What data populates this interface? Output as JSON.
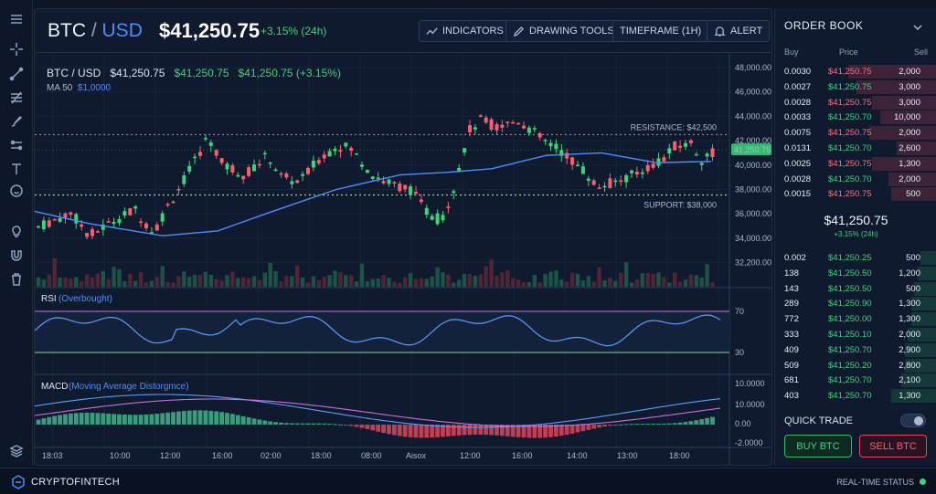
{
  "header": {
    "pair_base": "BTC",
    "pair_sep": " / ",
    "pair_quote": "USD",
    "price": "$41,250.75",
    "change": "+3.15% (24h)",
    "buttons": {
      "indicators": "INDICATORS",
      "drawing_tools": "DRAWING TOOLS",
      "timeframe": "TIMEFRAME (1H)",
      "alert": "ALERT"
    }
  },
  "legend": {
    "pair": "BTC / USD",
    "price": "$41,250.75",
    "value2": "$41,250.75",
    "value3": "$41,250.75 (+3.15%)",
    "ma_label": "MA 50",
    "ma_value": "$1,0000"
  },
  "main_chart": {
    "y_ticks": [
      "48,000.00",
      "46,000.00",
      "44,000.00",
      "42,000.00",
      "40,000.00",
      "38,000.00",
      "36,000.00",
      "34,000.00",
      "32,200.00"
    ],
    "current_price_tag": "41,250.75",
    "resistance_label": "RESISTANCE: $42,500",
    "support_label": "SUPPORT: $38,000"
  },
  "rsi": {
    "label": "RSI",
    "sublabel": "(Overbought)",
    "upper": "70",
    "lower": "30"
  },
  "macd": {
    "label": "MACD",
    "sublabel": "(Moving Average Distorgmce)",
    "ticks": [
      "10.0000",
      "10.0000",
      "0.00",
      "-2.0000"
    ]
  },
  "x_ticks": [
    "18:03",
    "10:00",
    "12:00",
    "16:00",
    "02:00",
    "18:00",
    "08:00",
    "Aisox",
    "12:00",
    "16:00",
    "14:00",
    "13:00",
    "18:00"
  ],
  "order_book": {
    "title": "ORDER BOOK",
    "col_buy": "Buy",
    "col_price": "Price",
    "col_sell": "Sell",
    "asks": [
      {
        "buy": "0.0030",
        "price": "$41,250.75",
        "sell": "2,000",
        "bar": 0.55
      },
      {
        "buy": "0.0027",
        "price": "$41,250.75",
        "sell": "3,000",
        "bar": 0.5
      },
      {
        "buy": "0.0028",
        "price": "$41,250.75",
        "sell": "3,000",
        "bar": 0.4
      },
      {
        "buy": "0.0033",
        "price": "$41,250.70",
        "sell": "10,000",
        "bar": 0.35
      },
      {
        "buy": "0.0075",
        "price": "$41,250.75",
        "sell": "2,000",
        "bar": 0.42
      },
      {
        "buy": "0.0131",
        "price": "$41,250.70",
        "sell": "2,600",
        "bar": 0.25
      },
      {
        "buy": "0.0025",
        "price": "$41,250.75",
        "sell": "1,300",
        "bar": 0.4
      },
      {
        "buy": "0.0028",
        "price": "$41,250.70",
        "sell": "2,000",
        "bar": 0.3
      },
      {
        "buy": "0.0015",
        "price": "$41,250.75",
        "sell": "500",
        "bar": 0.28
      }
    ],
    "mid_price": "$41,250.75",
    "mid_change": "+3.15% (24h)",
    "bids": [
      {
        "buy": "0.002",
        "price": "$41,250.25",
        "sell": "500",
        "bar": 0.1
      },
      {
        "buy": "138",
        "price": "$41,250.50",
        "sell": "1,200",
        "bar": 0.12
      },
      {
        "buy": "143",
        "price": "$41,250.50",
        "sell": "500",
        "bar": 0.14
      },
      {
        "buy": "289",
        "price": "$41,250.90",
        "sell": "1,300",
        "bar": 0.16
      },
      {
        "buy": "772",
        "price": "$41,250.00",
        "sell": "1,300",
        "bar": 0.16
      },
      {
        "buy": "333",
        "price": "$41,250.10",
        "sell": "2,000",
        "bar": 0.18
      },
      {
        "buy": "409",
        "price": "$41,250.70",
        "sell": "2,900",
        "bar": 0.2
      },
      {
        "buy": "509",
        "price": "$41,250.20",
        "sell": "2,800",
        "bar": 0.2
      },
      {
        "buy": "681",
        "price": "$41,250.70",
        "sell": "2,100",
        "bar": 0.22
      },
      {
        "buy": "403",
        "price": "$41,250.70",
        "sell": "1,300",
        "bar": 0.28
      }
    ]
  },
  "quick_trade": {
    "label": "QUICK TRADE",
    "buy": "BUY BTC",
    "sell": "SELL BTC"
  },
  "footer": {
    "brand": "CRYPTOFINTECH",
    "status": "REAL-TIME STATUS"
  },
  "colors": {
    "up": "#3fd47a",
    "down": "#ff5d6e",
    "ma": "#4e8dff",
    "resistance": "#ff5d6e",
    "support": "#9be14b"
  },
  "icons": [
    "menu-icon",
    "crosshair-icon",
    "trendline-icon",
    "fib-icon",
    "brush-icon",
    "measure-icon",
    "text-icon",
    "emoji-icon",
    "lightbulb-icon",
    "magnet-icon",
    "trash-icon",
    "layers-icon"
  ]
}
